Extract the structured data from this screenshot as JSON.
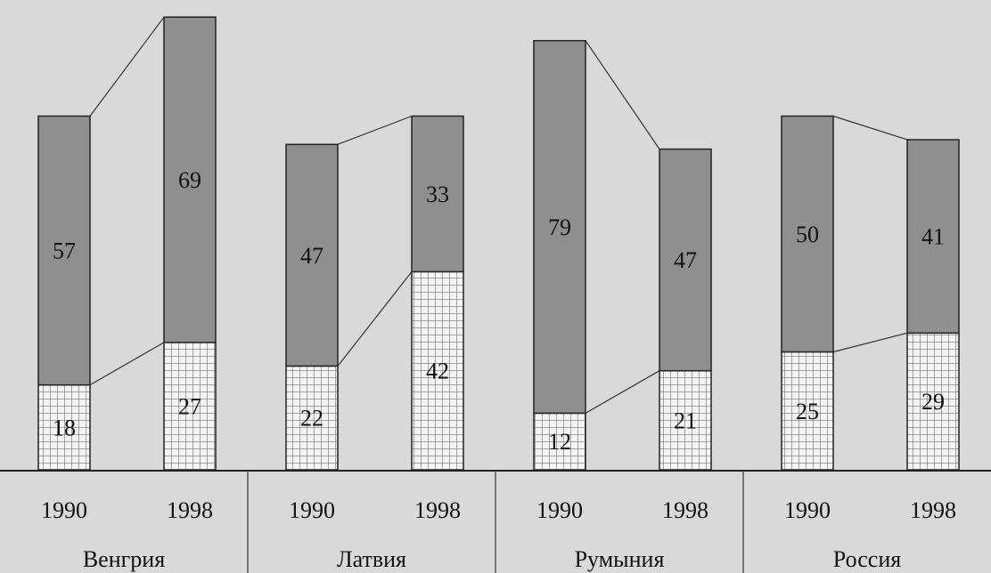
{
  "chart_data": {
    "type": "bar",
    "stacked": true,
    "groups": [
      {
        "name": "Венгрия",
        "bars": [
          {
            "year": "1990",
            "values": [
              18,
              57
            ]
          },
          {
            "year": "1998",
            "values": [
              27,
              69
            ]
          }
        ]
      },
      {
        "name": "Латвия",
        "bars": [
          {
            "year": "1990",
            "values": [
              22,
              47
            ]
          },
          {
            "year": "1998",
            "values": [
              42,
              33
            ]
          }
        ]
      },
      {
        "name": "Румыния",
        "bars": [
          {
            "year": "1990",
            "values": [
              12,
              79
            ]
          },
          {
            "year": "1998",
            "values": [
              21,
              47
            ]
          }
        ]
      },
      {
        "name": "Россия",
        "bars": [
          {
            "year": "1990",
            "values": [
              25,
              50
            ]
          },
          {
            "year": "1998",
            "values": [
              29,
              41
            ]
          }
        ]
      }
    ],
    "segment_styles": [
      "grid-hatched",
      "dark-gray"
    ],
    "colors": {
      "bottom_fill": "#f4f4f4",
      "top_fill": "#8f8f8f",
      "grid_line": "#555555",
      "background": "#d9d9d9",
      "text": "#111111"
    },
    "connector_lines": true,
    "legend": "none",
    "gridlines": false
  }
}
